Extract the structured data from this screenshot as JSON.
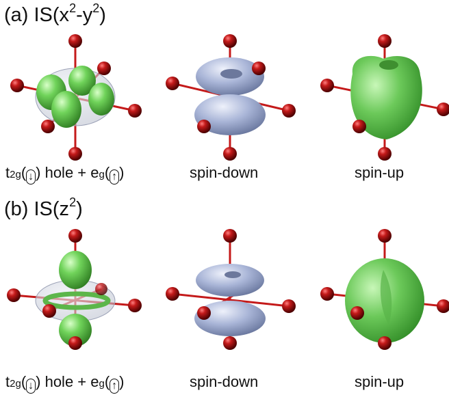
{
  "panels": [
    {
      "heading": {
        "prefix": "(a) IS(x",
        "sup1": "2",
        "mid": "-y",
        "sup2": "2",
        "suffix": ")"
      },
      "captions": {
        "orbital": {
          "t": "t",
          "t_sub": "2g",
          "t_spin": "↓",
          "hole": " hole + e",
          "e_sub": "g",
          "e_spin": "↑"
        },
        "spin_down": "spin-down",
        "spin_up": "spin-up"
      }
    },
    {
      "heading": {
        "prefix": "(b) IS(z",
        "sup1": "2",
        "suffix": ")"
      },
      "captions": {
        "orbital": {
          "t": "t",
          "t_sub": "2g",
          "t_spin": "↓",
          "hole": " hole + e",
          "e_sub": "g",
          "e_spin": "↑"
        },
        "spin_down": "spin-down",
        "spin_up": "spin-up"
      }
    }
  ],
  "colors": {
    "ligand": "#b01515",
    "bond": "#c41a1a",
    "green_lobe": "#6fcf5a",
    "blue_lobe": "#a9b6d8"
  }
}
